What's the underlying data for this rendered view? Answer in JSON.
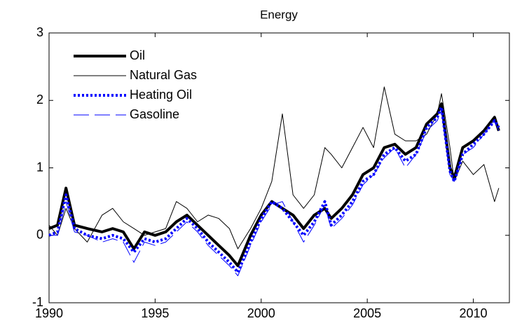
{
  "chart_data": {
    "type": "line",
    "title": "Energy",
    "x": [
      1990,
      1990.4,
      1990.8,
      1991.2,
      1991.8,
      1992.5,
      1993,
      1993.5,
      1994,
      1994.5,
      1995,
      1995.5,
      1996,
      1996.5,
      1997,
      1997.5,
      1998,
      1998.5,
      1998.9,
      1999.5,
      2000,
      2000.5,
      2001,
      2001.5,
      2002,
      2002.5,
      2003,
      2003.3,
      2003.8,
      2004.3,
      2004.8,
      2005.3,
      2005.8,
      2006.3,
      2006.8,
      2007.3,
      2007.8,
      2008.3,
      2008.5,
      2008.9,
      2009.1,
      2009.5,
      2010,
      2010.5,
      2011,
      2011.2
    ],
    "series": [
      {
        "name": "Oil",
        "color": "#000000",
        "width": 4,
        "dash": "none",
        "values": [
          0.1,
          0.15,
          0.7,
          0.15,
          0.1,
          0.05,
          0.1,
          0.05,
          -0.2,
          0.05,
          0.0,
          0.05,
          0.2,
          0.3,
          0.15,
          0.0,
          -0.15,
          -0.3,
          -0.45,
          0.0,
          0.3,
          0.5,
          0.4,
          0.3,
          0.1,
          0.3,
          0.4,
          0.25,
          0.4,
          0.6,
          0.9,
          1.0,
          1.3,
          1.35,
          1.2,
          1.3,
          1.65,
          1.8,
          1.95,
          1.0,
          0.85,
          1.3,
          1.4,
          1.55,
          1.75,
          1.55
        ]
      },
      {
        "name": "Natural Gas",
        "color": "#000000",
        "width": 1,
        "dash": "none",
        "values": [
          0.15,
          0.0,
          0.4,
          0.1,
          -0.1,
          0.3,
          0.4,
          0.2,
          0.1,
          0.0,
          0.05,
          0.1,
          0.5,
          0.4,
          0.2,
          0.3,
          0.25,
          0.1,
          -0.2,
          0.1,
          0.4,
          0.8,
          1.8,
          0.6,
          0.4,
          0.6,
          1.3,
          1.2,
          1.0,
          1.3,
          1.6,
          1.3,
          2.2,
          1.5,
          1.4,
          1.4,
          1.5,
          1.8,
          2.1,
          1.3,
          0.8,
          1.1,
          0.9,
          1.05,
          0.5,
          0.7
        ]
      },
      {
        "name": "Heating Oil",
        "color": "#0000ff",
        "width": 4,
        "dash": "3 3",
        "values": [
          0.0,
          0.05,
          0.6,
          0.1,
          0.0,
          -0.05,
          0.0,
          -0.05,
          -0.25,
          -0.05,
          -0.1,
          -0.05,
          0.1,
          0.25,
          0.1,
          -0.1,
          -0.25,
          -0.4,
          -0.55,
          -0.1,
          0.25,
          0.5,
          0.4,
          0.2,
          0.0,
          0.2,
          0.5,
          0.15,
          0.3,
          0.5,
          0.8,
          0.9,
          1.2,
          1.3,
          1.1,
          1.2,
          1.6,
          1.75,
          1.9,
          0.95,
          0.8,
          1.2,
          1.35,
          1.5,
          1.7,
          1.6
        ]
      },
      {
        "name": "Gasoline",
        "color": "#0000ff",
        "width": 1,
        "dash": "22 8",
        "values": [
          0.0,
          0.0,
          0.5,
          0.05,
          0.0,
          -0.1,
          -0.05,
          -0.1,
          -0.4,
          -0.1,
          -0.15,
          -0.1,
          0.05,
          0.2,
          0.05,
          -0.15,
          -0.3,
          -0.45,
          -0.6,
          -0.15,
          0.2,
          0.45,
          0.5,
          0.2,
          -0.1,
          0.15,
          0.45,
          0.1,
          0.25,
          0.45,
          0.75,
          0.9,
          1.15,
          1.3,
          1.0,
          1.2,
          1.55,
          1.7,
          1.85,
          0.9,
          0.8,
          1.2,
          1.3,
          1.5,
          1.7,
          1.55
        ]
      }
    ],
    "xlim": [
      1990,
      2011.7
    ],
    "ylim": [
      -1,
      3
    ],
    "xticks": [
      1990,
      1995,
      2000,
      2005,
      2010
    ],
    "yticks": [
      -1,
      0,
      1,
      2,
      3
    ],
    "grid": false,
    "legend": "upper left"
  }
}
